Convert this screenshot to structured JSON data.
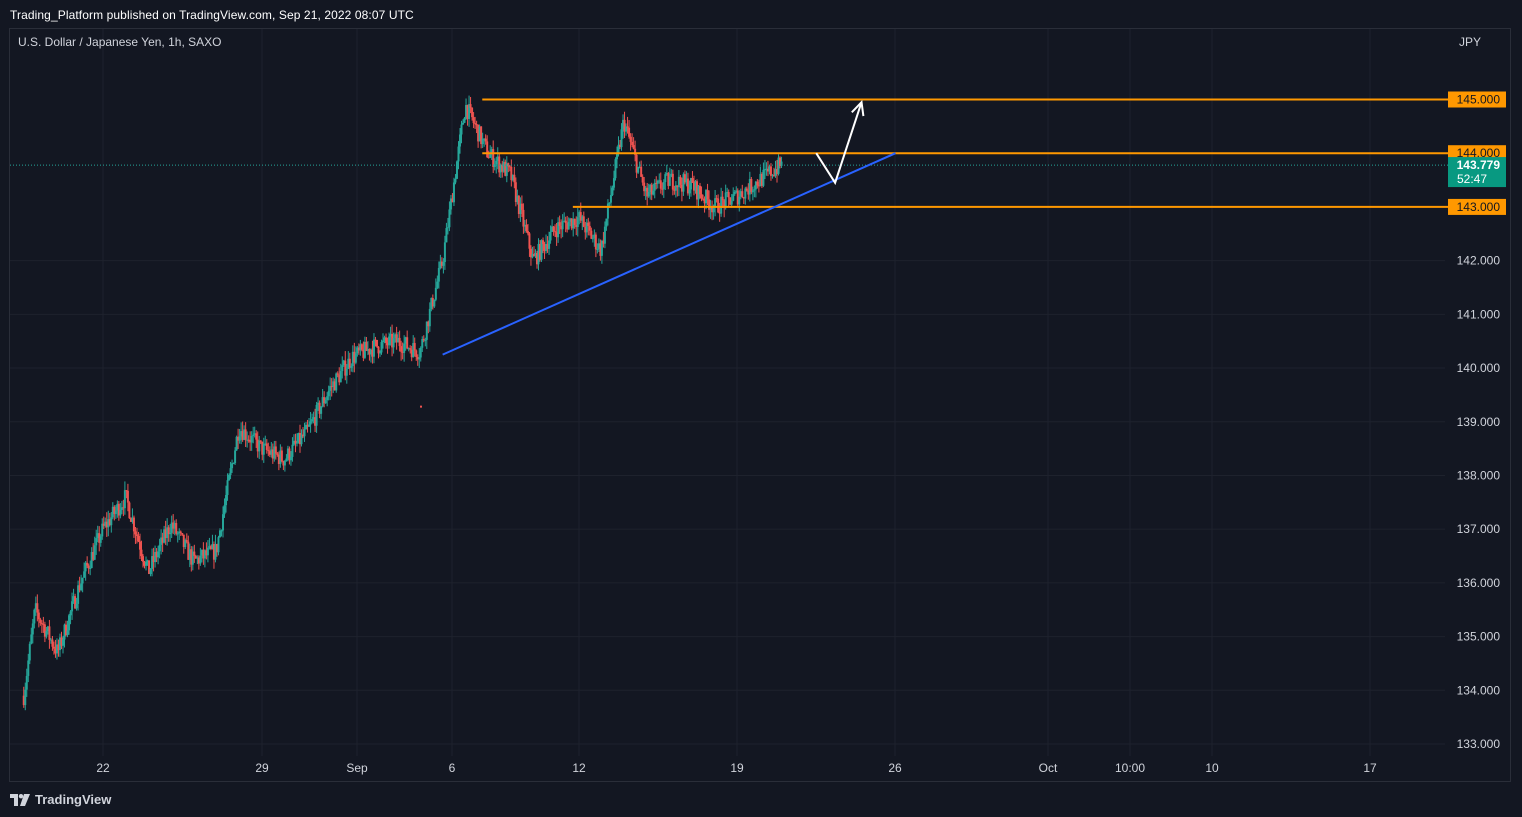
{
  "header": {
    "published_by": "Trading_Platform published on TradingView.com, Sep 21, 2022 08:07 UTC"
  },
  "symbol": {
    "title": "U.S. Dollar / Japanese Yen, 1h, SAXO",
    "currency": "JPY"
  },
  "footer": {
    "brand": "TradingView",
    "logo_icon": "tradingview-logo-icon"
  },
  "colors": {
    "up": "#26a69a",
    "down": "#ef5350",
    "level": "#ff9800",
    "trendline": "#2962ff",
    "arrow": "#ffffff",
    "last_price_bg": "#089981"
  },
  "chart_data": {
    "type": "candlestick",
    "title": "U.S. Dollar / Japanese Yen, 1h, SAXO",
    "ylim": [
      132.6,
      146.2
    ],
    "y_ticks": [
      "133.000",
      "134.000",
      "135.000",
      "136.000",
      "137.000",
      "138.000",
      "139.000",
      "140.000",
      "141.000",
      "142.000"
    ],
    "x_ticks": [
      "22",
      "29",
      "Sep",
      "6",
      "12",
      "19",
      "26",
      "Oct",
      "10:00",
      "10",
      "17"
    ],
    "grid": true,
    "path_points": [
      [
        "Aug 18 12:00",
        133.9
      ],
      [
        "Aug 19",
        135.5
      ],
      [
        "Aug 20",
        134.7
      ],
      [
        "Aug 21",
        136.0
      ],
      [
        "Aug 22",
        137.0
      ],
      [
        "Aug 23",
        137.6
      ],
      [
        "Aug 24",
        136.2
      ],
      [
        "Aug 25",
        137.1
      ],
      [
        "Aug 26",
        136.4
      ],
      [
        "Aug 27",
        136.6
      ],
      [
        "Aug 28",
        138.9
      ],
      [
        "Aug 29",
        138.5
      ],
      [
        "Aug 30",
        138.3
      ],
      [
        "Aug 31",
        138.8
      ],
      [
        "Sep 1",
        139.6
      ],
      [
        "Sep 2",
        140.2
      ],
      [
        "Sep 3",
        140.4
      ],
      [
        "Sep 4",
        140.5
      ],
      [
        "Sep 5",
        140.3
      ],
      [
        "Sep 6",
        142.0
      ],
      [
        "Sep 7",
        144.9
      ],
      [
        "Sep 8",
        144.0
      ],
      [
        "Sep 9",
        143.6
      ],
      [
        "Sep 10",
        142.0
      ],
      [
        "Sep 11",
        142.6
      ],
      [
        "Sep 12",
        142.8
      ],
      [
        "Sep 13",
        142.2
      ],
      [
        "Sep 14",
        144.6
      ],
      [
        "Sep 15",
        143.2
      ],
      [
        "Sep 16",
        143.5
      ],
      [
        "Sep 17",
        143.4
      ],
      [
        "Sep 18",
        143.0
      ],
      [
        "Sep 19",
        143.2
      ],
      [
        "Sep 20",
        143.5
      ],
      [
        "Sep 21",
        143.8
      ]
    ],
    "price_levels": [
      {
        "label": "145.000",
        "value": 145.0,
        "from": "Sep 7 18:00"
      },
      {
        "label": "144.000",
        "value": 144.0,
        "from": "Sep 7 18:00"
      },
      {
        "label": "143.000",
        "value": 143.0,
        "from": "Sep 11 18:00"
      }
    ],
    "last_price": {
      "label": "143.779",
      "value": 143.779,
      "countdown": "52:47"
    },
    "trendline": {
      "from": [
        "Sep 6",
        140.25
      ],
      "to": [
        "Sep 26",
        144.0
      ]
    },
    "projection_arrow": [
      [
        "Sep 22 12:00",
        144.0
      ],
      [
        "Sep 23 08:00",
        143.45
      ],
      [
        "Sep 24 12:00",
        144.95
      ]
    ]
  }
}
